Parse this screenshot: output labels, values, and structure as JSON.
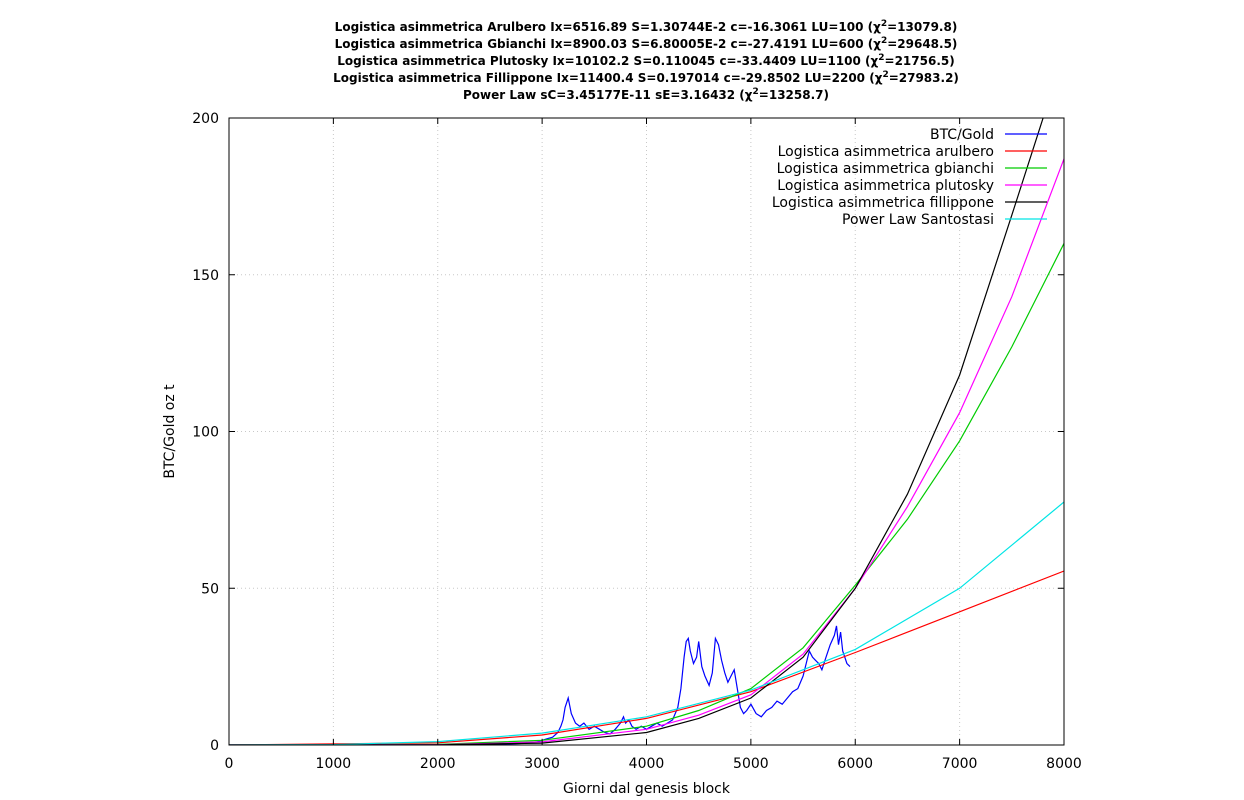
{
  "chart_data": {
    "type": "line",
    "title_lines": [
      {
        "text": "Logistica asimmetrica Arulbero Ix=6516.89 S=1.30744E-2 c=-16.3061 LU=100 (χ",
        "sup": "2",
        "tail": "=13079.8)"
      },
      {
        "text": "Logistica asimmetrica Gbianchi Ix=8900.03 S=6.80005E-2 c=-27.4191 LU=600 (χ",
        "sup": "2",
        "tail": "=29648.5)"
      },
      {
        "text": "Logistica asimmetrica Plutosky Ix=10102.2 S=0.110045 c=-33.4409 LU=1100 (χ",
        "sup": "2",
        "tail": "=21756.5)"
      },
      {
        "text": "Logistica asimmetrica Fillippone Ix=11400.4 S=0.197014 c=-29.8502 LU=2200 (χ",
        "sup": "2",
        "tail": "=27983.2)"
      },
      {
        "text": "Power Law sC=3.45177E-11 sE=3.16432 (χ",
        "sup": "2",
        "tail": "=13258.7)"
      }
    ],
    "xlabel": "Giorni dal genesis block",
    "ylabel": "BTC/Gold oz t",
    "xlim": [
      0,
      8000
    ],
    "ylim": [
      0,
      200
    ],
    "x_ticks": [
      0,
      1000,
      2000,
      3000,
      4000,
      5000,
      6000,
      7000,
      8000
    ],
    "y_ticks": [
      0,
      50,
      100,
      150,
      200
    ],
    "grid": true,
    "legend_position": "top-right",
    "series": [
      {
        "name": "BTC/Gold",
        "color": "#0000ff",
        "x": [
          0,
          500,
          1000,
          1500,
          2000,
          2300,
          2600,
          2800,
          2950,
          3050,
          3100,
          3150,
          3180,
          3200,
          3220,
          3250,
          3280,
          3320,
          3360,
          3400,
          3450,
          3500,
          3550,
          3600,
          3650,
          3700,
          3750,
          3780,
          3800,
          3830,
          3860,
          3900,
          3950,
          4000,
          4050,
          4100,
          4150,
          4200,
          4250,
          4300,
          4330,
          4360,
          4380,
          4400,
          4420,
          4450,
          4480,
          4500,
          4530,
          4560,
          4600,
          4630,
          4660,
          4690,
          4720,
          4750,
          4780,
          4810,
          4840,
          4870,
          4900,
          4930,
          4960,
          5000,
          5050,
          5100,
          5150,
          5200,
          5250,
          5300,
          5350,
          5400,
          5450,
          5500,
          5530,
          5560,
          5590,
          5620,
          5650,
          5680,
          5720,
          5760,
          5800,
          5820,
          5840,
          5860,
          5880,
          5900,
          5920,
          5950
        ],
        "y": [
          0,
          0,
          0,
          0.05,
          0.1,
          0.2,
          0.3,
          0.5,
          1,
          2,
          2.5,
          4,
          6,
          8,
          12,
          15,
          10,
          7,
          6,
          7,
          5,
          6,
          5,
          4,
          3.5,
          5,
          7,
          9,
          7,
          8,
          6,
          5,
          6,
          5,
          6,
          7,
          6,
          7,
          8,
          12,
          18,
          28,
          33,
          34,
          30,
          26,
          28,
          33,
          25,
          22,
          19,
          23,
          34,
          32,
          27,
          23,
          20,
          22,
          24,
          18,
          12,
          10,
          11,
          13,
          10,
          9,
          11,
          12,
          14,
          13,
          15,
          17,
          18,
          22,
          26,
          30,
          28,
          27,
          26,
          24,
          28,
          32,
          35,
          38,
          32,
          36,
          30,
          28,
          26,
          25
        ]
      },
      {
        "name": "Logistica asimmetrica arulbero",
        "color": "#ff0000",
        "x": [
          0,
          2000,
          3000,
          4000,
          5000,
          6000,
          7000,
          8000
        ],
        "y": [
          0,
          0.7,
          3.2,
          8.5,
          17,
          29.5,
          42.5,
          55.5
        ]
      },
      {
        "name": "Logistica asimmetrica gbianchi",
        "color": "#00cc00",
        "x": [
          0,
          2000,
          3000,
          4000,
          4500,
          5000,
          5500,
          6000,
          6500,
          7000,
          7500,
          8000
        ],
        "y": [
          0,
          0.2,
          1.5,
          6,
          11,
          18,
          31,
          51,
          72,
          97,
          127,
          160
        ]
      },
      {
        "name": "Logistica asimmetrica plutosky",
        "color": "#ff00ff",
        "x": [
          0,
          2000,
          3000,
          4000,
          4500,
          5000,
          5500,
          6000,
          6500,
          7000,
          7500,
          8000
        ],
        "y": [
          0,
          0.1,
          1,
          5,
          9.5,
          16,
          29,
          50,
          76,
          106,
          143,
          187
        ]
      },
      {
        "name": "Logistica asimmetrica fillippone",
        "color": "#000000",
        "x": [
          0,
          2000,
          3000,
          4000,
          4500,
          5000,
          5500,
          6000,
          6500,
          7000,
          7500,
          7800
        ],
        "y": [
          0,
          0.05,
          0.6,
          4,
          8.5,
          15,
          28,
          50,
          80,
          118,
          169,
          200
        ]
      },
      {
        "name": "Power Law Santostasi",
        "color": "#00e5e5",
        "x": [
          0,
          1000,
          2000,
          3000,
          4000,
          5000,
          6000,
          7000,
          8000
        ],
        "y": [
          0,
          0.12,
          1.1,
          3.8,
          9,
          17.5,
          30.5,
          50,
          77.5
        ]
      }
    ]
  }
}
